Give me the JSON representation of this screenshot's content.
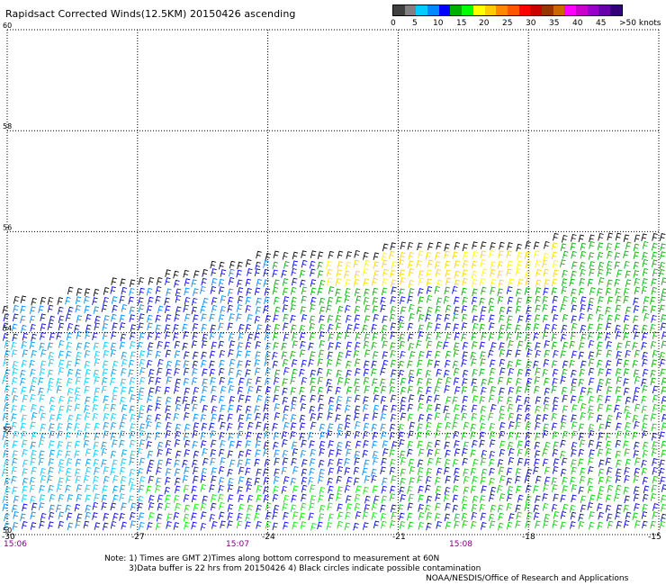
{
  "header": {
    "title": "Rapidsact Corrected Winds(12.5KM) 20150426 ascending"
  },
  "legend": {
    "colors": [
      "#404040",
      "#808080",
      "#00ccff",
      "#0088ff",
      "#0000ff",
      "#00b000",
      "#00ff00",
      "#ffff00",
      "#ffcc00",
      "#ff8800",
      "#ff5500",
      "#ff0000",
      "#cc0000",
      "#993300",
      "#cc6600",
      "#ff00ff",
      "#cc00cc",
      "#9900cc",
      "#6600aa",
      "#330077"
    ],
    "labels": [
      "0",
      "5",
      "10",
      "15",
      "20",
      "25",
      "30",
      "35",
      "40",
      "45",
      ">50 knots"
    ]
  },
  "map": {
    "lat_labels": [
      "60",
      "58",
      "56",
      "54",
      "52",
      "50"
    ],
    "lon_labels": [
      "-30",
      "-27",
      "-24",
      "-21",
      "-18",
      "-15"
    ],
    "time_labels": [
      "15:06",
      "15:07",
      "15:08"
    ],
    "lat_range": [
      50,
      60
    ],
    "lon_range": [
      -30,
      -15
    ]
  },
  "footer": {
    "note_line1": "Note: 1) Times are GMT 2)Times along bottom correspond to measurement at 60N",
    "note_line2": "3)Data buffer is 22 hrs from 20150426 4) Black circles indicate possible contamination",
    "credit": "NOAA/NESDIS/Office of Research and Applications"
  }
}
